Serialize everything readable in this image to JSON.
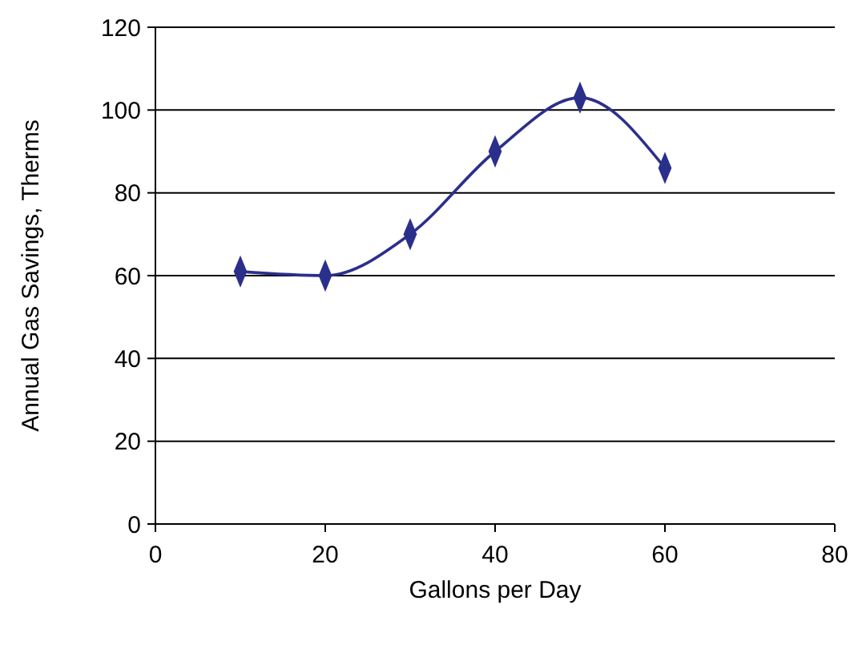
{
  "chart_data": {
    "type": "line",
    "xlabel": "Gallons per Day",
    "ylabel": "Annual Gas Savings, Therms",
    "x": [
      10,
      20,
      30,
      40,
      50,
      60
    ],
    "series": [
      {
        "color": "#2b2f8c",
        "values": [
          61,
          60,
          70,
          90,
          103,
          86
        ]
      }
    ],
    "xlim": [
      0,
      80
    ],
    "xticks": [
      0,
      20,
      40,
      60,
      80
    ],
    "ylim": [
      0,
      120
    ],
    "yticks": [
      0,
      20,
      40,
      60,
      80,
      100,
      120
    ],
    "grid": "y",
    "marker": "diamond",
    "line_style": "solid"
  }
}
